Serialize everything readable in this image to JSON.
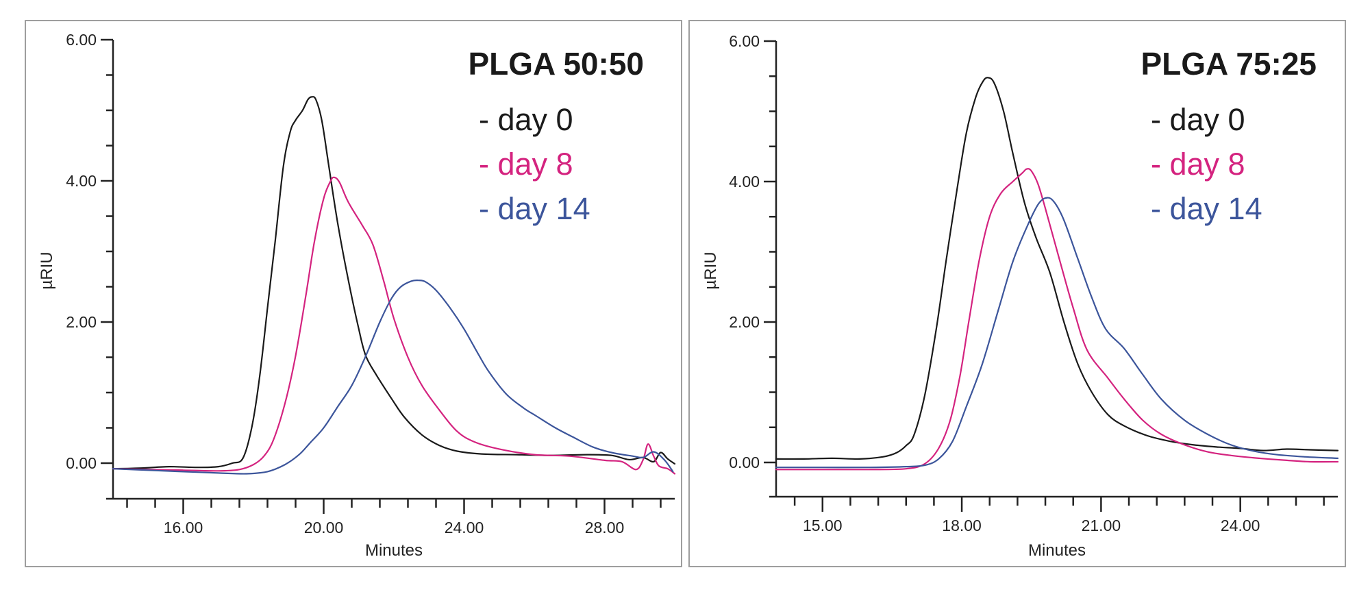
{
  "chart_data": [
    {
      "type": "line",
      "title": "PLGA 50:50",
      "xlabel": "Minutes",
      "ylabel": "µRIU",
      "xlim": [
        14,
        30
      ],
      "ylim": [
        -0.5,
        6
      ],
      "xticks": [
        16,
        20,
        24,
        28
      ],
      "xtick_labels": [
        "16.00",
        "20.00",
        "24.00",
        "28.00"
      ],
      "x_minor_step": 0.8,
      "yticks": [
        0,
        2,
        4,
        6
      ],
      "ytick_labels": [
        "0.00",
        "2.00",
        "4.00",
        "6.00"
      ],
      "y_minor_step": 0.5,
      "grid": false,
      "legend_position": "top-right",
      "series": [
        {
          "name": "- day 0",
          "color": "#1a1a1a",
          "x": [
            14.0,
            14.8,
            15.6,
            16.4,
            17.0,
            17.4,
            17.7,
            17.95,
            18.17,
            18.4,
            18.62,
            18.85,
            19.05,
            19.2,
            19.4,
            19.55,
            19.66,
            19.78,
            19.95,
            20.15,
            20.4,
            20.7,
            21.0,
            21.2,
            21.5,
            21.94,
            22.3,
            22.8,
            23.3,
            23.8,
            24.5,
            25.5,
            26.5,
            27.5,
            28.2,
            28.7,
            29.1,
            29.4,
            29.6,
            29.8,
            30.0
          ],
          "y": [
            -0.08,
            -0.07,
            -0.05,
            -0.06,
            -0.05,
            0.0,
            0.07,
            0.5,
            1.2,
            2.2,
            3.15,
            4.2,
            4.7,
            4.86,
            5.0,
            5.15,
            5.19,
            5.15,
            4.85,
            4.2,
            3.4,
            2.6,
            1.9,
            1.52,
            1.25,
            0.91,
            0.65,
            0.4,
            0.25,
            0.17,
            0.13,
            0.12,
            0.11,
            0.12,
            0.11,
            0.05,
            0.08,
            0.02,
            0.15,
            0.06,
            -0.01
          ]
        },
        {
          "name": "- day 8",
          "color": "#d4237f",
          "x": [
            14.0,
            15.0,
            16.0,
            17.0,
            17.6,
            18.0,
            18.3,
            18.57,
            18.9,
            19.2,
            19.5,
            19.74,
            20.0,
            20.2,
            20.3,
            20.45,
            20.7,
            21.1,
            21.4,
            21.7,
            22.0,
            22.4,
            22.8,
            23.3,
            23.8,
            24.3,
            25.0,
            26.0,
            27.0,
            28.0,
            28.5,
            28.9,
            29.1,
            29.24,
            29.4,
            29.55,
            29.8,
            30.0
          ],
          "y": [
            -0.08,
            -0.09,
            -0.1,
            -0.11,
            -0.09,
            -0.02,
            0.1,
            0.33,
            0.85,
            1.52,
            2.4,
            3.15,
            3.75,
            4.0,
            4.05,
            3.98,
            3.7,
            3.37,
            3.1,
            2.6,
            2.05,
            1.5,
            1.1,
            0.75,
            0.45,
            0.3,
            0.2,
            0.12,
            0.1,
            0.04,
            0.02,
            -0.09,
            0.05,
            0.27,
            0.1,
            -0.04,
            -0.08,
            -0.15
          ]
        },
        {
          "name": "- day 14",
          "color": "#3c559b",
          "x": [
            14.0,
            15.0,
            16.0,
            17.0,
            17.8,
            18.4,
            18.9,
            19.3,
            19.6,
            20.0,
            20.4,
            20.8,
            21.2,
            21.6,
            21.94,
            22.2,
            22.5,
            22.7,
            22.9,
            23.2,
            23.6,
            24.0,
            24.4,
            24.7,
            25.2,
            25.7,
            26.05,
            26.6,
            27.1,
            27.66,
            28.2,
            28.8,
            29.1,
            29.4,
            29.7,
            29.95
          ],
          "y": [
            -0.08,
            -0.1,
            -0.12,
            -0.14,
            -0.15,
            -0.12,
            -0.02,
            0.12,
            0.28,
            0.5,
            0.8,
            1.1,
            1.52,
            2.0,
            2.34,
            2.5,
            2.58,
            2.59,
            2.57,
            2.45,
            2.2,
            1.9,
            1.55,
            1.3,
            0.98,
            0.78,
            0.67,
            0.5,
            0.37,
            0.23,
            0.15,
            0.1,
            0.08,
            0.16,
            0.05,
            -0.12
          ]
        }
      ]
    },
    {
      "type": "line",
      "title": "PLGA 75:25",
      "xlabel": "Minutes",
      "ylabel": "µRIU",
      "xlim": [
        14,
        26.1
      ],
      "ylim": [
        -0.5,
        6
      ],
      "xticks": [
        15,
        18,
        21,
        24
      ],
      "xtick_labels": [
        "15.00",
        "18.00",
        "21.00",
        "24.00"
      ],
      "x_minor_step": 0.6,
      "yticks": [
        0,
        2,
        4,
        6
      ],
      "ytick_labels": [
        "0.00",
        "2.00",
        "4.00",
        "6.00"
      ],
      "y_minor_step": 0.5,
      "grid": false,
      "legend_position": "top-right",
      "series": [
        {
          "name": "- day 0",
          "color": "#1a1a1a",
          "x": [
            14.0,
            14.6,
            15.2,
            15.8,
            16.3,
            16.6,
            16.8,
            16.97,
            17.2,
            17.45,
            17.66,
            17.9,
            18.1,
            18.3,
            18.45,
            18.56,
            18.7,
            18.9,
            19.1,
            19.35,
            19.6,
            19.9,
            20.2,
            20.5,
            20.8,
            21.15,
            21.5,
            22.0,
            22.5,
            23.0,
            23.5,
            24.0,
            24.5,
            25.0,
            25.5,
            26.1
          ],
          "y": [
            0.05,
            0.05,
            0.06,
            0.05,
            0.08,
            0.14,
            0.24,
            0.39,
            0.95,
            1.9,
            2.86,
            3.9,
            4.7,
            5.2,
            5.42,
            5.48,
            5.4,
            5.0,
            4.4,
            3.7,
            3.2,
            2.7,
            2.0,
            1.4,
            1.0,
            0.68,
            0.52,
            0.38,
            0.3,
            0.25,
            0.22,
            0.2,
            0.17,
            0.19,
            0.18,
            0.17
          ]
        },
        {
          "name": "- day 8",
          "color": "#d4237f",
          "x": [
            14.0,
            15.0,
            16.0,
            16.8,
            17.2,
            17.5,
            17.75,
            17.96,
            18.15,
            18.37,
            18.6,
            18.84,
            19.1,
            19.3,
            19.4,
            19.5,
            19.65,
            19.85,
            20.1,
            20.4,
            20.7,
            21.15,
            21.5,
            21.9,
            22.3,
            22.8,
            23.3,
            23.8,
            24.4,
            25.0,
            25.5,
            26.1
          ],
          "y": [
            -0.1,
            -0.1,
            -0.1,
            -0.09,
            -0.02,
            0.2,
            0.6,
            1.23,
            2.0,
            2.86,
            3.5,
            3.83,
            4.0,
            4.12,
            4.18,
            4.15,
            3.95,
            3.5,
            2.9,
            2.2,
            1.6,
            1.2,
            0.9,
            0.6,
            0.4,
            0.25,
            0.15,
            0.1,
            0.06,
            0.03,
            0.01,
            0.01
          ]
        },
        {
          "name": "- day 14",
          "color": "#3c559b",
          "x": [
            14.0,
            15.0,
            16.0,
            16.8,
            17.2,
            17.5,
            17.8,
            18.1,
            18.44,
            18.8,
            19.1,
            19.4,
            19.65,
            19.84,
            20.0,
            20.2,
            20.5,
            20.8,
            21.1,
            21.5,
            21.9,
            22.3,
            22.8,
            23.3,
            23.8,
            24.3,
            24.8,
            25.4,
            26.1
          ],
          "y": [
            -0.07,
            -0.07,
            -0.07,
            -0.06,
            -0.04,
            0.05,
            0.3,
            0.8,
            1.4,
            2.2,
            2.86,
            3.35,
            3.68,
            3.77,
            3.7,
            3.45,
            2.9,
            2.35,
            1.9,
            1.62,
            1.25,
            0.9,
            0.6,
            0.4,
            0.25,
            0.16,
            0.11,
            0.08,
            0.06
          ]
        }
      ]
    }
  ]
}
